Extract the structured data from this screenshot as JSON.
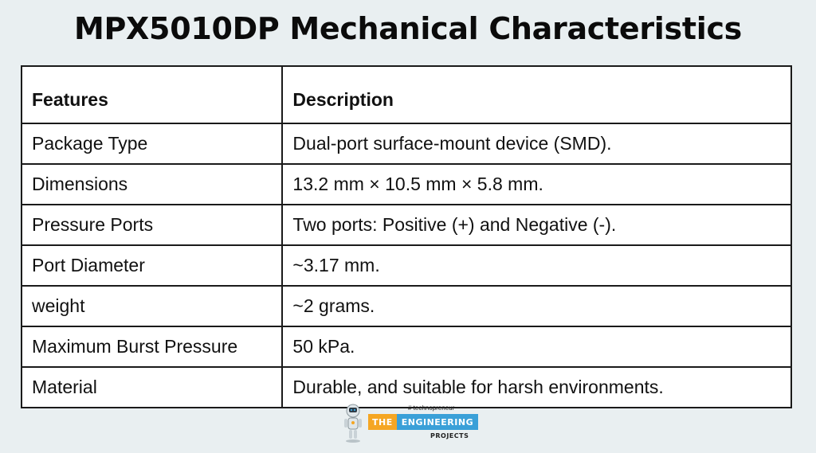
{
  "title": "MPX5010DP Mechanical Characteristics",
  "table": {
    "headers": [
      "Features",
      "Description"
    ],
    "rows": [
      {
        "feature": "Package Type",
        "description": "Dual-port surface-mount device (SMD)."
      },
      {
        "feature": "Dimensions",
        "description": "13.2 mm × 10.5 mm × 5.8 mm."
      },
      {
        "feature": "Pressure Ports",
        "description": "Two ports: Positive (+) and Negative (-)."
      },
      {
        "feature": "Port Diameter",
        "description": "~3.17 mm."
      },
      {
        "feature": "weight",
        "description": "~2 grams."
      },
      {
        "feature": "Maximum Burst Pressure",
        "description": "50 kPa."
      },
      {
        "feature": "Material",
        "description": "Durable, and suitable for harsh environments."
      }
    ]
  },
  "logo": {
    "tagline": "# technopreneur",
    "the": "THE",
    "engineering": "ENGINEERING",
    "projects": "PROJECTS",
    "icon": "robot-icon"
  },
  "colors": {
    "background": "#e9eff1",
    "table_bg": "#ffffff",
    "border": "#1a1a1a",
    "logo_orange": "#f5a623",
    "logo_blue": "#3aa0d8"
  }
}
